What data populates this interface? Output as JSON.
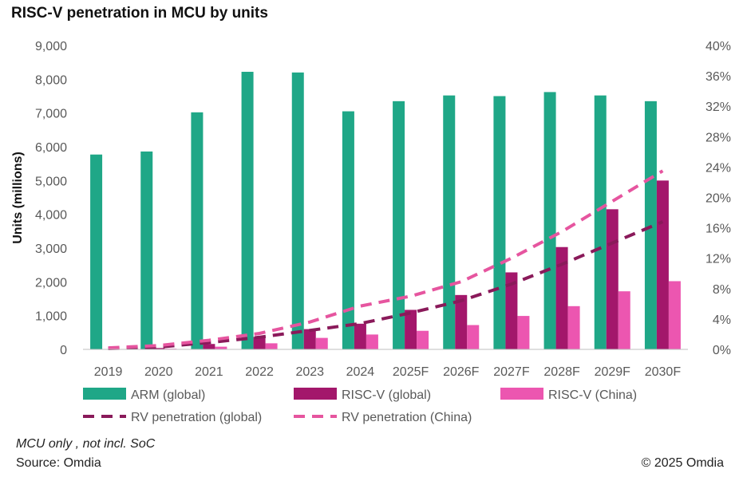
{
  "title": "RISC-V penetration in MCU by units",
  "footnote": "MCU only , not incl. SoC",
  "source": "Source: Omdia",
  "copyright": "© 2025 Omdia",
  "colors": {
    "arm": "#1fa787",
    "riscv_global": "#a3176b",
    "riscv_china": "#ec56b0",
    "pen_global": "#8a1a5a",
    "pen_china": "#e6559f"
  },
  "chart_data": {
    "type": "bar",
    "title": "RISC-V penetration in MCU by units",
    "categories": [
      "2019",
      "2020",
      "2021",
      "2022",
      "2023",
      "2024",
      "2025F",
      "2026F",
      "2027F",
      "2028F",
      "2029F",
      "2030F"
    ],
    "ylabel": "Units (millions)",
    "ylim": [
      0,
      9000
    ],
    "yticks": [
      "0",
      "1,000",
      "2,000",
      "3,000",
      "4,000",
      "5,000",
      "6,000",
      "7,000",
      "8,000",
      "9,000"
    ],
    "y2lim": [
      0,
      40
    ],
    "y2ticks": [
      "0%",
      "4%",
      "8%",
      "12%",
      "16%",
      "20%",
      "24%",
      "28%",
      "32%",
      "36%",
      "40%"
    ],
    "bar_series": [
      {
        "key": "arm",
        "name": "ARM (global)",
        "color": "#1fa787",
        "values": [
          5770,
          5860,
          7020,
          8220,
          8200,
          7050,
          7350,
          7520,
          7500,
          7620,
          7520,
          7350
        ]
      },
      {
        "key": "riscv_global",
        "name": "RISC-V (global)",
        "color": "#a3176b",
        "values": [
          10,
          40,
          160,
          370,
          600,
          760,
          1170,
          1610,
          2280,
          3030,
          4150,
          5000
        ]
      },
      {
        "key": "riscv_china",
        "name": "RISC-V (China)",
        "color": "#ec56b0",
        "values": [
          5,
          20,
          80,
          180,
          340,
          440,
          550,
          720,
          990,
          1280,
          1720,
          2020
        ]
      }
    ],
    "line_series": [
      {
        "key": "pen_global",
        "name": "RV penetration (global)",
        "color": "#8a1a5a",
        "axis": "secondary",
        "values": [
          0.1,
          0.3,
          0.9,
          1.6,
          2.5,
          3.4,
          4.8,
          6.4,
          8.6,
          11.2,
          14.0,
          16.8
        ]
      },
      {
        "key": "pen_china",
        "name": "RV penetration (China)",
        "color": "#e6559f",
        "axis": "secondary",
        "values": [
          0.2,
          0.5,
          1.2,
          2.1,
          3.6,
          5.7,
          7.0,
          8.9,
          12.0,
          15.5,
          19.5,
          23.5
        ]
      }
    ]
  }
}
